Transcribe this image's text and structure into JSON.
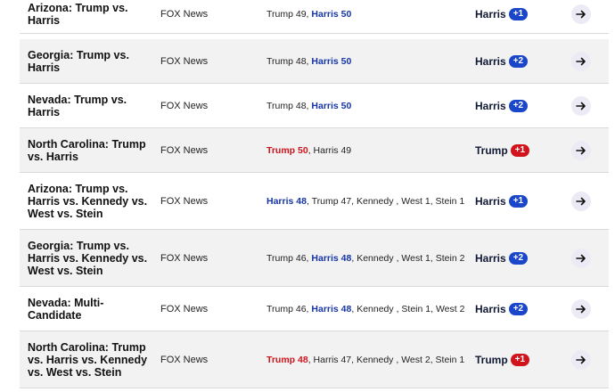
{
  "rows": [
    {
      "race": "Arizona: Trump vs. Harris",
      "source": "FOX News",
      "results": [
        {
          "text": "Trump 49",
          "color": "plain"
        },
        {
          "text": "Harris 50",
          "color": "blue"
        }
      ],
      "spread": {
        "leader": "Harris",
        "margin": "+1",
        "color": "blue"
      },
      "icon": "arrow-right-icon"
    },
    {
      "race": "Georgia: Trump vs. Harris",
      "source": "FOX News",
      "results": [
        {
          "text": "Trump 48",
          "color": "plain"
        },
        {
          "text": "Harris 50",
          "color": "blue"
        }
      ],
      "spread": {
        "leader": "Harris",
        "margin": "+2",
        "color": "blue"
      },
      "icon": "arrow-right-icon"
    },
    {
      "race": "Nevada: Trump vs. Harris",
      "source": "FOX News",
      "results": [
        {
          "text": "Trump 48",
          "color": "plain"
        },
        {
          "text": "Harris 50",
          "color": "blue"
        }
      ],
      "spread": {
        "leader": "Harris",
        "margin": "+2",
        "color": "blue"
      },
      "icon": "arrow-right-icon"
    },
    {
      "race": "North Carolina: Trump vs. Harris",
      "source": "FOX News",
      "results": [
        {
          "text": "Trump 50",
          "color": "red"
        },
        {
          "text": "Harris 49",
          "color": "plain"
        }
      ],
      "spread": {
        "leader": "Trump",
        "margin": "+1",
        "color": "red"
      },
      "icon": "arrow-right-icon"
    },
    {
      "race": "Arizona: Trump vs. Harris vs. Kennedy vs. West vs. Stein",
      "source": "FOX News",
      "results": [
        {
          "text": "Harris 48",
          "color": "blue"
        },
        {
          "text": "Trump 47",
          "color": "plain"
        },
        {
          "text": "Kennedy ",
          "color": "plain"
        },
        {
          "text": "West 1",
          "color": "plain"
        },
        {
          "text": "Stein 1",
          "color": "plain"
        }
      ],
      "spread": {
        "leader": "Harris",
        "margin": "+1",
        "color": "blue"
      },
      "icon": "arrow-right-icon"
    },
    {
      "race": "Georgia: Trump vs. Harris vs. Kennedy vs. West vs. Stein",
      "source": "FOX News",
      "results": [
        {
          "text": "Trump 46",
          "color": "plain"
        },
        {
          "text": "Harris 48",
          "color": "blue"
        },
        {
          "text": "Kennedy ",
          "color": "plain"
        },
        {
          "text": "West 1",
          "color": "plain"
        },
        {
          "text": "Stein 2",
          "color": "plain"
        }
      ],
      "spread": {
        "leader": "Harris",
        "margin": "+2",
        "color": "blue"
      },
      "icon": "arrow-right-icon"
    },
    {
      "race": "Nevada: Multi-Candidate",
      "source": "FOX News",
      "results": [
        {
          "text": "Trump 46",
          "color": "plain"
        },
        {
          "text": "Harris 48",
          "color": "blue"
        },
        {
          "text": "Kennedy ",
          "color": "plain"
        },
        {
          "text": "Stein 1",
          "color": "plain"
        },
        {
          "text": "West 2",
          "color": "plain"
        }
      ],
      "spread": {
        "leader": "Harris",
        "margin": "+2",
        "color": "blue"
      },
      "icon": "arrow-right-icon"
    },
    {
      "race": "North Carolina: Trump vs. Harris vs. Kennedy vs. West vs. Stein",
      "source": "FOX News",
      "results": [
        {
          "text": "Trump 48",
          "color": "red"
        },
        {
          "text": "Harris 47",
          "color": "plain"
        },
        {
          "text": "Kennedy ",
          "color": "plain"
        },
        {
          "text": "West 2",
          "color": "plain"
        },
        {
          "text": "Stein 1",
          "color": "plain"
        }
      ],
      "spread": {
        "leader": "Trump",
        "margin": "+1",
        "color": "red"
      },
      "icon": "arrow-right-icon"
    }
  ],
  "colors": {
    "harris_blue": "#1a46c9",
    "trump_red": "#d1141b",
    "alt_row": "#f2f2f2",
    "arrow_button_bg": "#ecebf5"
  }
}
